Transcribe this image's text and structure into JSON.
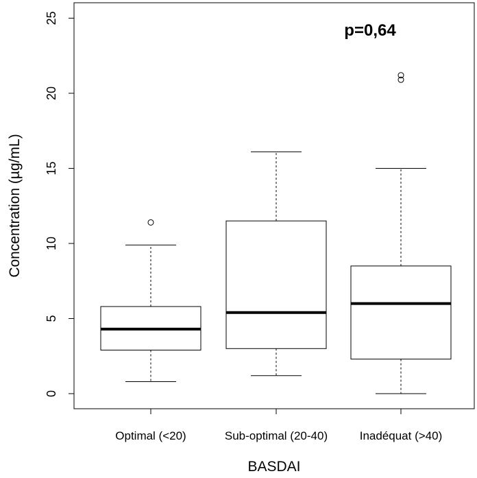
{
  "chart_data": {
    "type": "boxplot",
    "xlabel": "BASDAI",
    "ylabel": "Concentration (µg/mL)",
    "annotation": "p=0,64",
    "ylim": [
      -1,
      26
    ],
    "yticks": [
      "0",
      "5",
      "10",
      "15",
      "20",
      "25"
    ],
    "ytick_values": [
      0,
      5,
      10,
      15,
      20,
      25
    ],
    "categories": [
      "Optimal (<20)",
      "Sub-optimal (20-40)",
      "Inadéquat (>40)"
    ],
    "boxes": [
      {
        "whisker_low": 0.8,
        "q1": 2.9,
        "median": 4.3,
        "q3": 5.8,
        "whisker_high": 9.9,
        "outliers": [
          11.4
        ]
      },
      {
        "whisker_low": 1.2,
        "q1": 3.0,
        "median": 5.4,
        "q3": 11.5,
        "whisker_high": 16.1,
        "outliers": []
      },
      {
        "whisker_low": 0.0,
        "q1": 2.3,
        "median": 6.0,
        "q3": 8.5,
        "whisker_high": 15.0,
        "outliers": [
          20.9,
          21.2
        ]
      }
    ],
    "colors": {
      "box_fill": "#ffffff",
      "stroke": "#000000"
    }
  }
}
